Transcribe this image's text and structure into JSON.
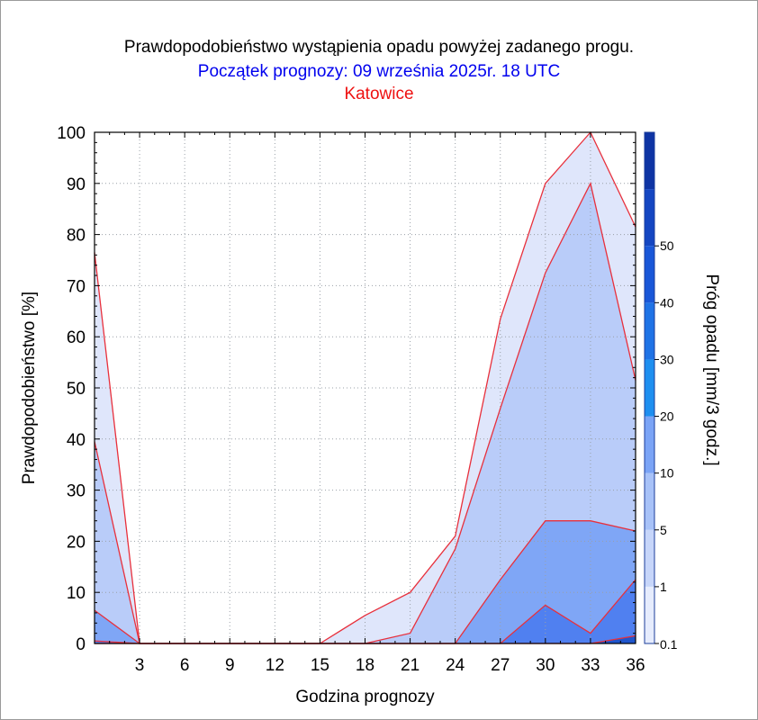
{
  "title": "Prawdopodobieństwo wystąpienia opadu powyżej zadanego progu.",
  "subtitle": "Początek prognozy: 09 września 2025r. 18 UTC",
  "location": "Katowice",
  "colors": {
    "title": "#000000",
    "subtitle": "#0000ee",
    "location": "#ee1111",
    "band_outline": "#e8303c"
  },
  "chart_data": {
    "type": "area",
    "xlabel": "Godzina prognozy",
    "ylabel": "Prawdopodobieństwo [%]",
    "colorbar_label": "Próg opadu [mm/3 godz.]",
    "xlim": [
      0,
      36
    ],
    "ylim": [
      0,
      100
    ],
    "xticks": [
      "3",
      "6",
      "9",
      "12",
      "15",
      "18",
      "21",
      "24",
      "27",
      "30",
      "33",
      "36"
    ],
    "yticks": [
      "0",
      "10",
      "20",
      "30",
      "40",
      "50",
      "60",
      "70",
      "80",
      "90",
      "100"
    ],
    "grid": true,
    "x": [
      0,
      3,
      6,
      9,
      12,
      15,
      18,
      21,
      24,
      27,
      30,
      33,
      36
    ],
    "series": [
      {
        "name": "0.1",
        "color": "#dfe6fb",
        "values": [
          76.5,
          0,
          0,
          0,
          0,
          0,
          5.5,
          10,
          21,
          63.5,
          90,
          100,
          81.5
        ]
      },
      {
        "name": "1",
        "color": "#b9ccf9",
        "values": [
          39.5,
          0,
          0,
          0,
          0,
          0,
          0,
          2,
          18.5,
          46,
          72.5,
          90,
          51.5
        ]
      },
      {
        "name": "5",
        "color": "#7fa6f6",
        "values": [
          6.5,
          0,
          0,
          0,
          0,
          0,
          0,
          0,
          0,
          12.5,
          24,
          24,
          22
        ]
      },
      {
        "name": "10",
        "color": "#5080f0",
        "values": [
          0.5,
          0,
          0,
          0,
          0,
          0,
          0,
          0,
          0,
          0,
          7.5,
          2,
          12.5
        ]
      },
      {
        "name": "20",
        "color": "#1f55cc",
        "values": [
          0,
          0,
          0,
          0,
          0,
          0,
          0,
          0,
          0,
          0,
          0,
          0,
          1.5
        ]
      }
    ],
    "colorbar": {
      "ticks": [
        "0.1",
        "1",
        "5",
        "10",
        "20",
        "30",
        "40",
        "50"
      ],
      "colors": [
        "#e6ecfd",
        "#c7d6fa",
        "#a8c2f8",
        "#7ba4f6",
        "#1e8ff0",
        "#1f73e6",
        "#1957d8",
        "#1446c2",
        "#0e34a4"
      ]
    }
  }
}
